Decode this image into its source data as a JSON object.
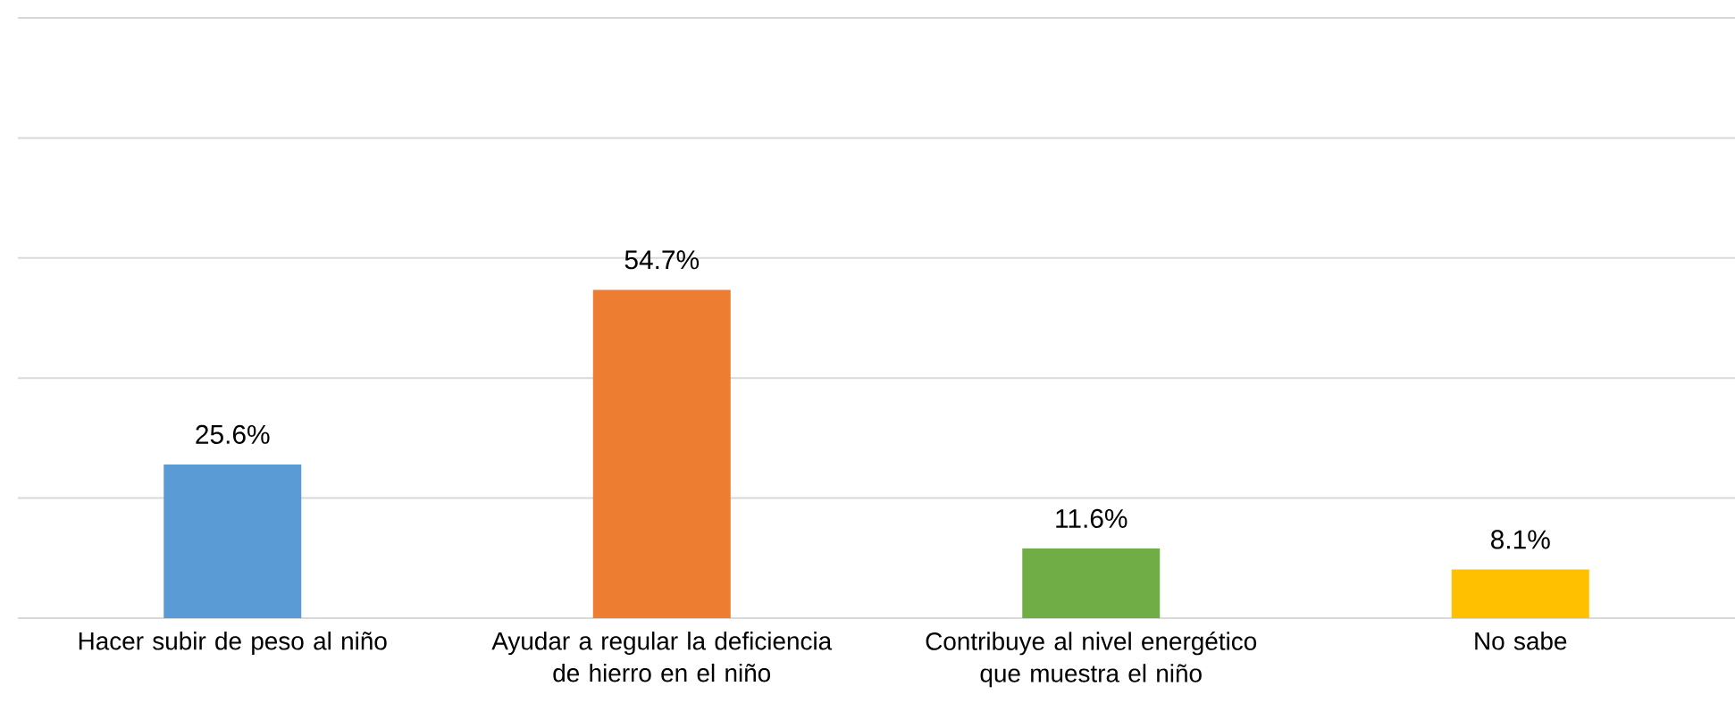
{
  "chart_data": {
    "type": "bar",
    "categories": [
      "Hacer subir de peso al niño",
      "Ayudar a regular la deficiencia de hierro en el niño",
      "Contribuye al nivel energético que muestra el niño",
      "No sabe"
    ],
    "values": [
      25.6,
      54.7,
      11.6,
      8.1
    ],
    "value_labels": [
      "25.6%",
      "54.7%",
      "11.6%",
      "8.1%"
    ],
    "colors": [
      "#5b9bd5",
      "#ed7d31",
      "#70ad47",
      "#ffc000"
    ],
    "ylim": [
      0,
      100
    ],
    "yticks": [
      {
        "value": 0,
        "label": null
      },
      {
        "value": 20,
        "label": null
      },
      {
        "value": 40,
        "label": null
      },
      {
        "value": 60,
        "label": null
      },
      {
        "value": 80,
        "label": null
      },
      {
        "value": 100,
        "label": null
      }
    ],
    "tick_labels": "x",
    "grid": "y"
  }
}
